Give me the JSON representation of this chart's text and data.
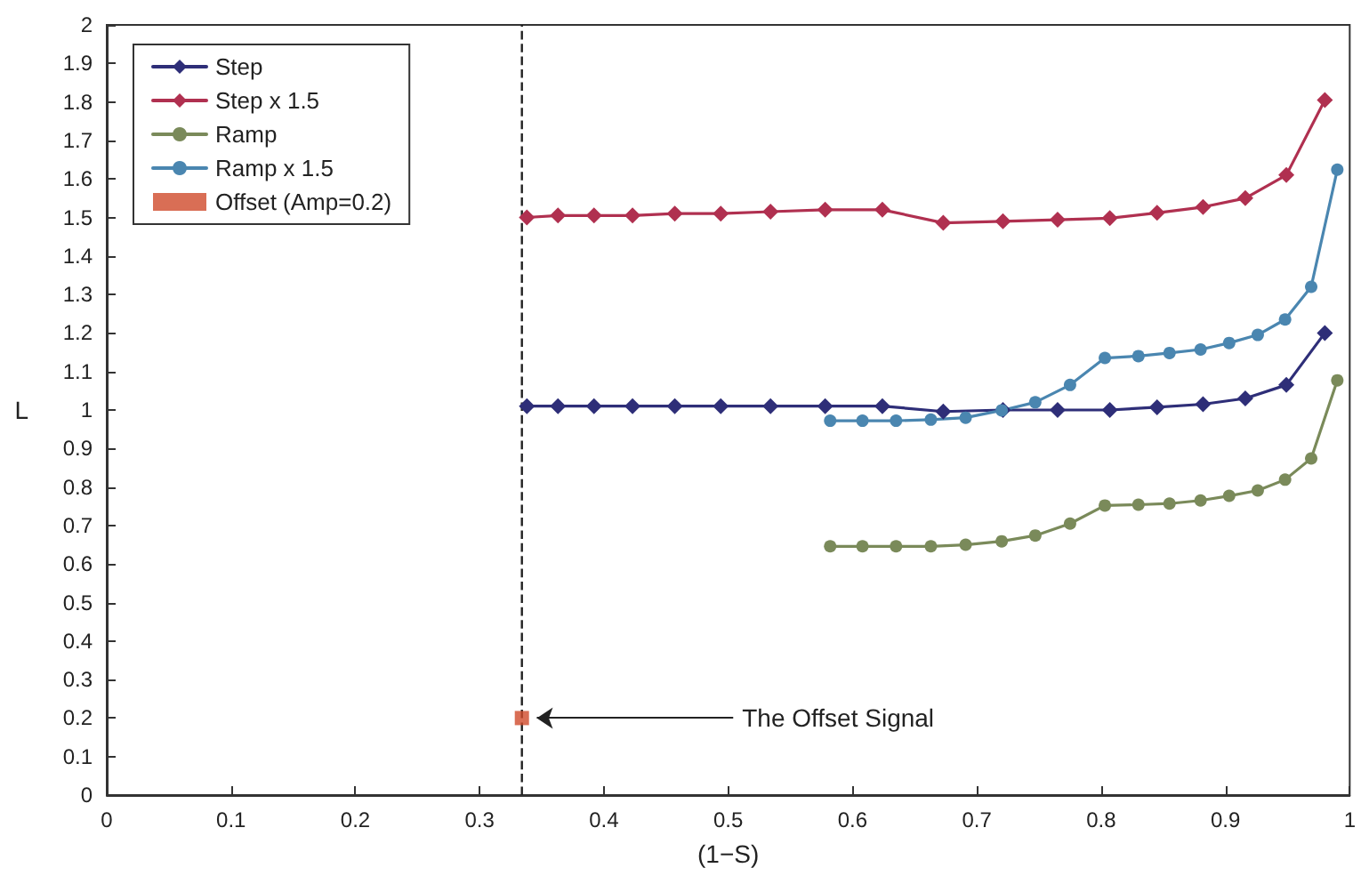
{
  "chart_data": {
    "type": "line",
    "xlabel": "(1−S)",
    "ylabel": "L",
    "xlim": [
      0,
      1
    ],
    "xticks": [
      0,
      0.1,
      0.2,
      0.3,
      0.4,
      0.5,
      0.6,
      0.7,
      0.8,
      0.9,
      1
    ],
    "ylim": [
      0,
      2
    ],
    "yticks": [
      0,
      0.1,
      0.2,
      0.3,
      0.4,
      0.5,
      0.6,
      0.7,
      0.8,
      0.9,
      1,
      1.1,
      1.2,
      1.3,
      1.4,
      1.5,
      1.6,
      1.7,
      1.8,
      1.9,
      2
    ],
    "grid": false,
    "legend": "top left",
    "line_style": "solid",
    "series": [
      {
        "name": "Step",
        "color": "#2e2e78",
        "marker": "diamond",
        "x": [
          0.338,
          0.363,
          0.392,
          0.423,
          0.457,
          0.494,
          0.534,
          0.578,
          0.624,
          0.673,
          0.721,
          0.765,
          0.807,
          0.845,
          0.882,
          0.916,
          0.949,
          0.98
        ],
        "values": [
          1.01,
          1.01,
          1.01,
          1.01,
          1.01,
          1.01,
          1.01,
          1.01,
          1.01,
          0.996,
          1.0,
          1.0,
          1.0,
          1.007,
          1.015,
          1.03,
          1.065,
          1.2
        ]
      },
      {
        "name": "Step x 1.5",
        "color": "#b03050",
        "marker": "diamond",
        "x": [
          0.338,
          0.363,
          0.392,
          0.423,
          0.457,
          0.494,
          0.534,
          0.578,
          0.624,
          0.673,
          0.721,
          0.765,
          0.807,
          0.845,
          0.882,
          0.916,
          0.949,
          0.98
        ],
        "values": [
          1.5,
          1.505,
          1.505,
          1.505,
          1.51,
          1.51,
          1.515,
          1.52,
          1.52,
          1.486,
          1.49,
          1.494,
          1.498,
          1.512,
          1.527,
          1.55,
          1.61,
          1.805
        ]
      },
      {
        "name": "Ramp",
        "color": "#7a8a5a",
        "marker": "circle",
        "x": [
          0.582,
          0.608,
          0.635,
          0.663,
          0.691,
          0.72,
          0.747,
          0.775,
          0.803,
          0.83,
          0.855,
          0.88,
          0.903,
          0.926,
          0.948,
          0.969,
          0.99
        ],
        "values": [
          0.646,
          0.646,
          0.646,
          0.646,
          0.65,
          0.659,
          0.674,
          0.705,
          0.752,
          0.754,
          0.757,
          0.765,
          0.777,
          0.791,
          0.819,
          0.874,
          1.077
        ]
      },
      {
        "name": "Ramp x 1.5",
        "color": "#4a86b0",
        "marker": "circle",
        "x": [
          0.582,
          0.608,
          0.635,
          0.663,
          0.691,
          0.72,
          0.747,
          0.775,
          0.803,
          0.83,
          0.855,
          0.88,
          0.903,
          0.926,
          0.948,
          0.969,
          0.99
        ],
        "values": [
          0.972,
          0.972,
          0.972,
          0.975,
          0.98,
          0.999,
          1.02,
          1.065,
          1.135,
          1.14,
          1.148,
          1.157,
          1.174,
          1.195,
          1.235,
          1.32,
          1.624
        ]
      },
      {
        "name": "Offset (Amp=0.2)",
        "type": "scatter",
        "color": "#d04a2a",
        "marker": "square",
        "x": [
          0.334
        ],
        "values": [
          0.2
        ]
      }
    ],
    "ref_lines": [
      {
        "axis": "x",
        "value": 0.334,
        "color": "#222222",
        "line_style": "dashed"
      }
    ],
    "annotations": [
      {
        "text": "The Offset Signal",
        "x": 0.334,
        "y": 0.2
      }
    ]
  }
}
